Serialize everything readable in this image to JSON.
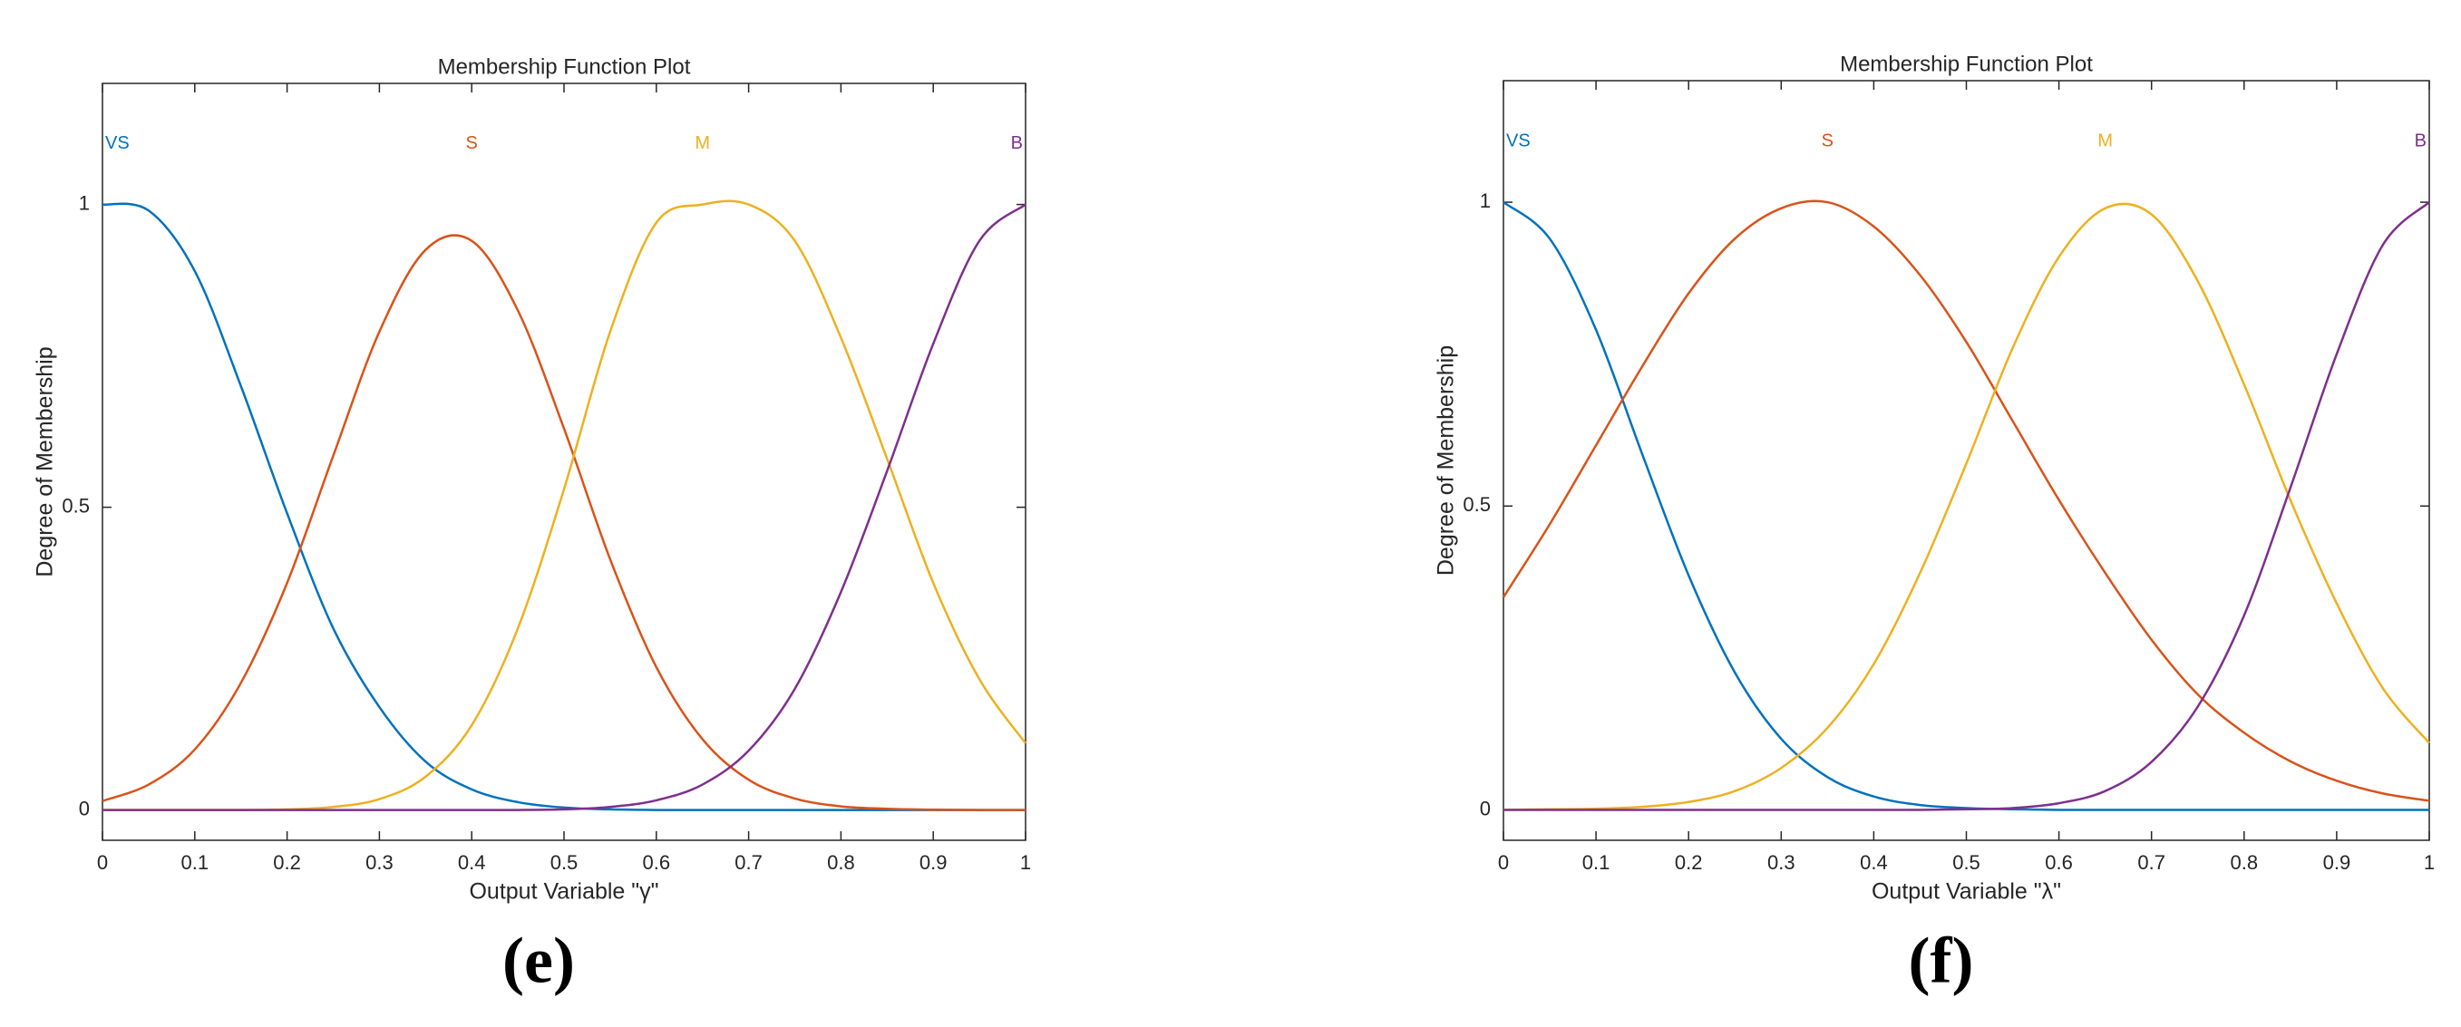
{
  "chart_data": [
    {
      "type": "line",
      "title": "Membership Function Plot",
      "x_label": "Output Variable \"γ\"",
      "y_label": "Degree of Membership",
      "panel_label": "(e)",
      "x": [
        0,
        0.05,
        0.1,
        0.15,
        0.2,
        0.25,
        0.3,
        0.35,
        0.4,
        0.45,
        0.5,
        0.55,
        0.6,
        0.65,
        0.7,
        0.75,
        0.8,
        0.85,
        0.9,
        0.95,
        1
      ],
      "xlim": [
        0,
        1
      ],
      "xticks": [
        0,
        0.1,
        0.2,
        0.3,
        0.4,
        0.5,
        0.6,
        0.7,
        0.8,
        0.9,
        1
      ],
      "ylim": [
        -0.05,
        1.2
      ],
      "yticks": [
        0,
        0.5,
        1
      ],
      "series": [
        {
          "name": "VS",
          "color": "#0072bd",
          "values": [
            1,
            0.99,
            0.89,
            0.7,
            0.49,
            0.3,
            0.17,
            0.08,
            0.034,
            0.013,
            0.004,
            0.001,
            0,
            0,
            0,
            0,
            0,
            0,
            0,
            0,
            0
          ]
        },
        {
          "name": "S",
          "color": "#d95319",
          "values": [
            0.015,
            0.042,
            0.1,
            0.21,
            0.375,
            0.585,
            0.79,
            0.925,
            0.94,
            0.825,
            0.63,
            0.414,
            0.236,
            0.117,
            0.05,
            0.019,
            0.006,
            0.002,
            0.0005,
            0,
            0
          ]
        },
        {
          "name": "M",
          "color": "#edb120",
          "values": [
            0,
            0,
            0,
            0,
            0.001,
            0.005,
            0.018,
            0.055,
            0.14,
            0.3,
            0.53,
            0.79,
            0.97,
            1,
            1,
            0.94,
            0.78,
            0.58,
            0.375,
            0.216,
            0.11
          ]
        },
        {
          "name": "B",
          "color": "#7e2f8e",
          "values": [
            0,
            0,
            0,
            0,
            0,
            0,
            0,
            0,
            0,
            0,
            0.001,
            0.005,
            0.016,
            0.042,
            0.098,
            0.2,
            0.36,
            0.56,
            0.77,
            0.94,
            1
          ]
        }
      ]
    },
    {
      "type": "line",
      "title": "Membership Function Plot",
      "x_label": "Output Variable \"λ\"",
      "y_label": "Degree of Membership",
      "panel_label": "(f)",
      "x": [
        0,
        0.05,
        0.1,
        0.15,
        0.2,
        0.25,
        0.3,
        0.35,
        0.4,
        0.45,
        0.5,
        0.55,
        0.6,
        0.65,
        0.7,
        0.75,
        0.8,
        0.85,
        0.9,
        0.95,
        1
      ],
      "xlim": [
        0,
        1
      ],
      "xticks": [
        0,
        0.1,
        0.2,
        0.3,
        0.4,
        0.5,
        0.6,
        0.7,
        0.8,
        0.9,
        1
      ],
      "ylim": [
        -0.05,
        1.2
      ],
      "yticks": [
        0,
        0.5,
        1
      ],
      "series": [
        {
          "name": "VS",
          "color": "#0072bd",
          "values": [
            1,
            0.94,
            0.79,
            0.585,
            0.386,
            0.226,
            0.117,
            0.054,
            0.022,
            0.008,
            0.003,
            0.001,
            0,
            0,
            0,
            0,
            0,
            0,
            0,
            0,
            0
          ]
        },
        {
          "name": "S",
          "color": "#d95319",
          "values": [
            0.35,
            0.47,
            0.6,
            0.73,
            0.85,
            0.94,
            0.99,
            1,
            0.96,
            0.88,
            0.77,
            0.64,
            0.51,
            0.39,
            0.28,
            0.19,
            0.127,
            0.08,
            0.048,
            0.027,
            0.015
          ]
        },
        {
          "name": "M",
          "color": "#edb120",
          "values": [
            0,
            0.001,
            0.002,
            0.005,
            0.013,
            0.031,
            0.069,
            0.135,
            0.24,
            0.39,
            0.57,
            0.76,
            0.91,
            0.99,
            0.98,
            0.87,
            0.7,
            0.51,
            0.34,
            0.2,
            0.11
          ]
        },
        {
          "name": "B",
          "color": "#7e2f8e",
          "values": [
            0,
            0,
            0,
            0,
            0,
            0,
            0,
            0,
            0,
            0,
            0.001,
            0.003,
            0.011,
            0.031,
            0.079,
            0.17,
            0.32,
            0.53,
            0.75,
            0.93,
            1
          ]
        }
      ]
    }
  ]
}
